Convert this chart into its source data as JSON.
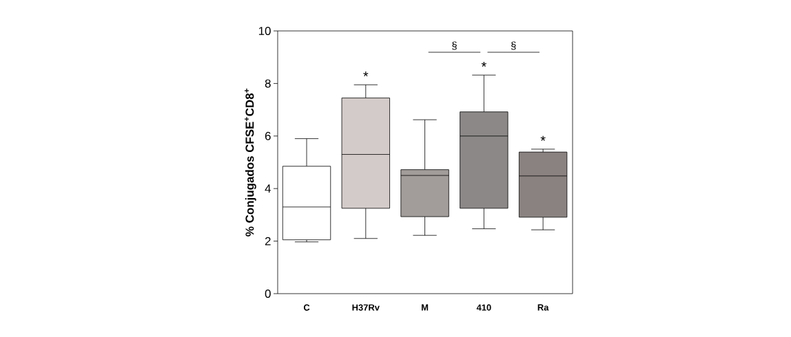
{
  "chart_data": {
    "type": "box",
    "ylabel": "% Conjugados CFSE$^{+}$CD8$^{+}$",
    "categories": [
      "C",
      "H37Rv",
      "M",
      "410",
      "Ra"
    ],
    "colors": [
      "#ffffff",
      "#d3cbc9",
      "#a29c9a",
      "#8c8888",
      "#8a8280"
    ],
    "boxes": [
      {
        "low": 1.97,
        "q1": 2.05,
        "median": 3.3,
        "q3": 4.85,
        "high": 5.9
      },
      {
        "low": 2.1,
        "q1": 3.25,
        "median": 5.3,
        "q3": 7.45,
        "high": 7.95
      },
      {
        "low": 2.22,
        "q1": 2.93,
        "median": 4.5,
        "q3": 4.72,
        "high": 6.62
      },
      {
        "low": 2.47,
        "q1": 3.25,
        "median": 6.0,
        "q3": 6.92,
        "high": 8.32
      },
      {
        "low": 2.43,
        "q1": 2.91,
        "median": 4.48,
        "q3": 5.39,
        "high": 5.5
      }
    ],
    "ylim": [
      0,
      10
    ],
    "yticks": [
      0,
      2,
      4,
      6,
      8,
      10
    ],
    "annotations": [
      "*",
      "*",
      "*",
      "§",
      "§"
    ]
  }
}
